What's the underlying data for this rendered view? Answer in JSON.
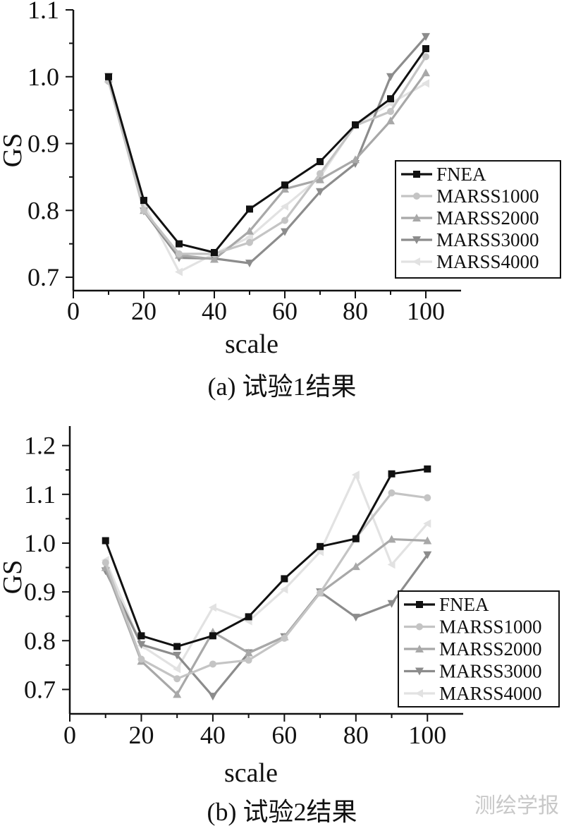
{
  "watermark": "测绘学报",
  "chart_data": [
    {
      "type": "line",
      "caption": "(a) 试验1结果",
      "xlabel": "scale",
      "ylabel": "GS",
      "xlim": [
        0,
        110
      ],
      "ylim": [
        0.68,
        1.1
      ],
      "xticks": [
        0,
        20,
        40,
        60,
        80,
        100
      ],
      "yticks": [
        0.7,
        0.8,
        0.9,
        1.0,
        1.1
      ],
      "ytick_labels": [
        "0.7",
        "0.8",
        "0.9",
        "1.0",
        "1.1"
      ],
      "x": [
        10,
        20,
        30,
        40,
        50,
        60,
        70,
        80,
        90,
        100
      ],
      "legend_position": "bottom-right",
      "series": [
        {
          "name": "FNEA",
          "color": "#111111",
          "marker": "square",
          "values": [
            1.0,
            0.815,
            0.75,
            0.737,
            0.802,
            0.838,
            0.873,
            0.928,
            0.967,
            1.042
          ]
        },
        {
          "name": "MARSS1000",
          "color": "#c4c4c4",
          "marker": "circle",
          "values": [
            0.993,
            0.8,
            0.735,
            0.735,
            0.752,
            0.785,
            0.855,
            0.927,
            0.948,
            1.03
          ]
        },
        {
          "name": "MARSS2000",
          "color": "#a8a8a8",
          "marker": "triangle-up",
          "values": [
            0.997,
            0.8,
            0.733,
            0.727,
            0.769,
            0.832,
            0.846,
            0.876,
            0.934,
            1.006
          ]
        },
        {
          "name": "MARSS3000",
          "color": "#8c8c8c",
          "marker": "triangle-down",
          "values": [
            1.0,
            0.799,
            0.729,
            0.728,
            0.721,
            0.768,
            0.828,
            0.87,
            1.0,
            1.06
          ]
        },
        {
          "name": "MARSS4000",
          "color": "#e2e2e2",
          "marker": "triangle-left",
          "values": [
            0.998,
            0.81,
            0.708,
            0.735,
            0.76,
            0.806,
            0.85,
            0.928,
            0.96,
            0.99
          ]
        }
      ]
    },
    {
      "type": "line",
      "caption": "(b) 试验2结果",
      "xlabel": "scale",
      "ylabel": "GS",
      "xlim": [
        0,
        110
      ],
      "ylim": [
        0.65,
        1.24
      ],
      "xticks": [
        0,
        20,
        40,
        60,
        80,
        100
      ],
      "yticks": [
        0.7,
        0.8,
        0.9,
        1.0,
        1.1,
        1.2
      ],
      "ytick_labels": [
        "0.7",
        "0.8",
        "0.9",
        "1.0",
        "1.1",
        "1.2"
      ],
      "x": [
        10,
        20,
        30,
        40,
        50,
        60,
        70,
        80,
        90,
        100
      ],
      "legend_position": "bottom-right",
      "series": [
        {
          "name": "FNEA",
          "color": "#111111",
          "marker": "square",
          "values": [
            1.005,
            0.81,
            0.788,
            0.81,
            0.849,
            0.927,
            0.993,
            1.009,
            1.142,
            1.152
          ]
        },
        {
          "name": "MARSS1000",
          "color": "#c4c4c4",
          "marker": "circle",
          "values": [
            0.96,
            0.762,
            0.722,
            0.752,
            0.76,
            0.805,
            0.898,
            1.01,
            1.103,
            1.093
          ]
        },
        {
          "name": "MARSS2000",
          "color": "#a8a8a8",
          "marker": "triangle-up",
          "values": [
            0.95,
            0.758,
            0.69,
            0.818,
            0.775,
            0.808,
            0.898,
            0.952,
            1.008,
            1.005
          ]
        },
        {
          "name": "MARSS3000",
          "color": "#8c8c8c",
          "marker": "triangle-down",
          "values": [
            0.943,
            0.792,
            0.77,
            0.686,
            0.775,
            0.808,
            0.9,
            0.848,
            0.876,
            0.976
          ]
        },
        {
          "name": "MARSS4000",
          "color": "#e2e2e2",
          "marker": "triangle-left",
          "values": [
            0.965,
            0.79,
            0.742,
            0.868,
            0.84,
            0.905,
            0.982,
            1.14,
            0.956,
            1.04
          ]
        }
      ]
    }
  ]
}
